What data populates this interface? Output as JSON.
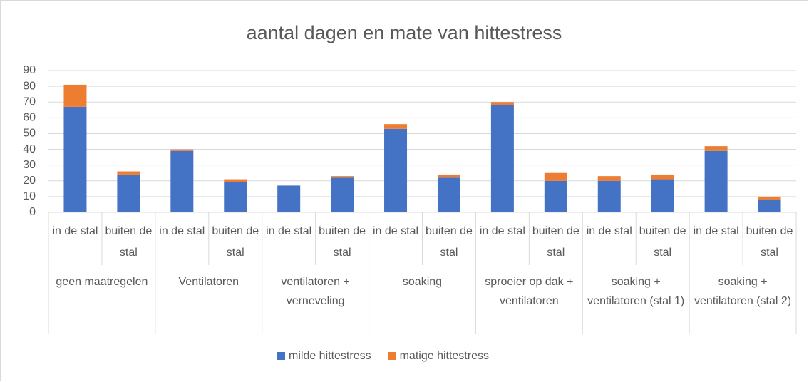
{
  "chart_data": {
    "type": "stacked_bar",
    "title": "aantal dagen en mate van hittestress",
    "categories": [
      "in de stal",
      "buiten de stal",
      "in de stal",
      "buiten de stal",
      "in de stal",
      "buiten de stal",
      "in de stal",
      "buiten de stal",
      "in de stal",
      "buiten de stal",
      "in de stal",
      "buiten de stal",
      "in de stal",
      "buiten de stal"
    ],
    "groups": [
      "geen maatregelen",
      "Ventilatoren",
      "ventilatoren + verneveling",
      "soaking",
      "sproeier op dak + ventilatoren",
      "soaking + ventilatoren (stal 1)",
      "soaking + ventilatoren (stal 2)"
    ],
    "series": [
      {
        "name": "milde hittestress",
        "color": "#4472c4",
        "values": [
          67,
          24,
          39,
          19,
          17,
          22,
          53,
          22,
          68,
          20,
          20,
          21,
          39,
          8
        ]
      },
      {
        "name": "matige hittestress",
        "color": "#ed7d31",
        "values": [
          14,
          2,
          1,
          2,
          0,
          1,
          3,
          2,
          2,
          5,
          3,
          3,
          3,
          2
        ]
      }
    ],
    "ylim": [
      0,
      90
    ],
    "yticks": [
      0,
      10,
      20,
      30,
      40,
      50,
      60,
      70,
      80,
      90
    ],
    "grid": true,
    "legend": "bottom"
  }
}
